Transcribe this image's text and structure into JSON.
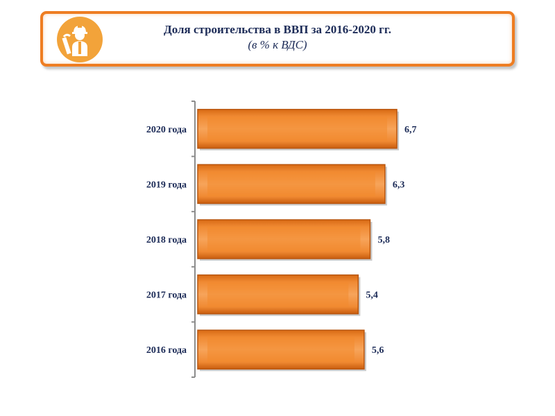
{
  "header": {
    "title": "Доля строительства  в ВВП за 2016-2020 гг.",
    "subtitle": "(в % к ВДС)",
    "icon": "construction-worker-icon"
  },
  "colors": {
    "accent": "#ee7d22",
    "icon_bg": "#f2a33a",
    "text": "#1c2b57",
    "bar_edge": "#c95d0e",
    "bar_light": "#f7a860"
  },
  "chart_data": {
    "type": "bar",
    "orientation": "horizontal",
    "categories": [
      "2020 года",
      "2019 года",
      "2018 года",
      "2017 года",
      "2016 года"
    ],
    "values": [
      6.7,
      6.3,
      5.8,
      5.4,
      5.6
    ],
    "value_labels": [
      "6,7",
      "6,3",
      "5,8",
      "5,4",
      "5,6"
    ],
    "xlim": [
      0,
      6.7
    ],
    "grid": false,
    "legend": "none"
  }
}
